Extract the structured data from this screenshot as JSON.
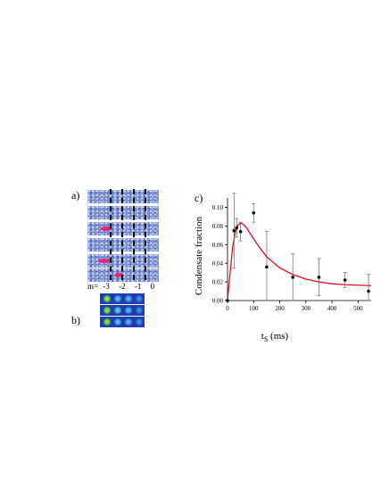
{
  "panels": {
    "a_label": "a)",
    "b_label": "b)",
    "c_label": "c)"
  },
  "m_labels": {
    "prefix": "m=",
    "values": [
      "-3",
      "-2",
      "-1",
      "0"
    ]
  },
  "colors": {
    "curve": "#e01020",
    "points": "#000000",
    "absorption_bg": "#7c95d4",
    "tof_bg": "#1e3fa8"
  },
  "chart_data": {
    "type": "scatter",
    "ylabel": "Condensate fraction",
    "xlabel_main": "t",
    "xlabel_sub": "S",
    "xlabel_unit": " (ms)",
    "xlim": [
      0,
      550
    ],
    "ylim": [
      0,
      0.11
    ],
    "xticks": [
      "0",
      "100",
      "200",
      "300",
      "400",
      "500"
    ],
    "xtick_values": [
      0,
      100,
      200,
      300,
      400,
      500
    ],
    "yticks": [
      "0.00",
      "0.02",
      "0.04",
      "0.06",
      "0.08",
      "0.10"
    ],
    "ytick_values": [
      0,
      0.02,
      0.04,
      0.06,
      0.08,
      0.1
    ],
    "points": [
      {
        "x": 0,
        "y": 0.0,
        "err": 0.0
      },
      {
        "x": 25,
        "y": 0.075,
        "err": 0.04
      },
      {
        "x": 35,
        "y": 0.078,
        "err": 0.01
      },
      {
        "x": 50,
        "y": 0.074,
        "err": 0.01
      },
      {
        "x": 100,
        "y": 0.094,
        "err": 0.01
      },
      {
        "x": 150,
        "y": 0.036,
        "err": 0.038
      },
      {
        "x": 250,
        "y": 0.025,
        "err": 0.025
      },
      {
        "x": 350,
        "y": 0.025,
        "err": 0.02
      },
      {
        "x": 450,
        "y": 0.022,
        "err": 0.008
      },
      {
        "x": 540,
        "y": 0.01,
        "err": 0.018
      }
    ],
    "curve": {
      "x": [
        0,
        10,
        20,
        30,
        40,
        50,
        60,
        70,
        80,
        100,
        125,
        150,
        200,
        250,
        300,
        350,
        400,
        450,
        500,
        550
      ],
      "y": [
        0.0,
        0.03,
        0.058,
        0.074,
        0.081,
        0.083,
        0.082,
        0.079,
        0.075,
        0.066,
        0.056,
        0.047,
        0.035,
        0.028,
        0.023,
        0.02,
        0.018,
        0.017,
        0.0165,
        0.016
      ]
    }
  }
}
